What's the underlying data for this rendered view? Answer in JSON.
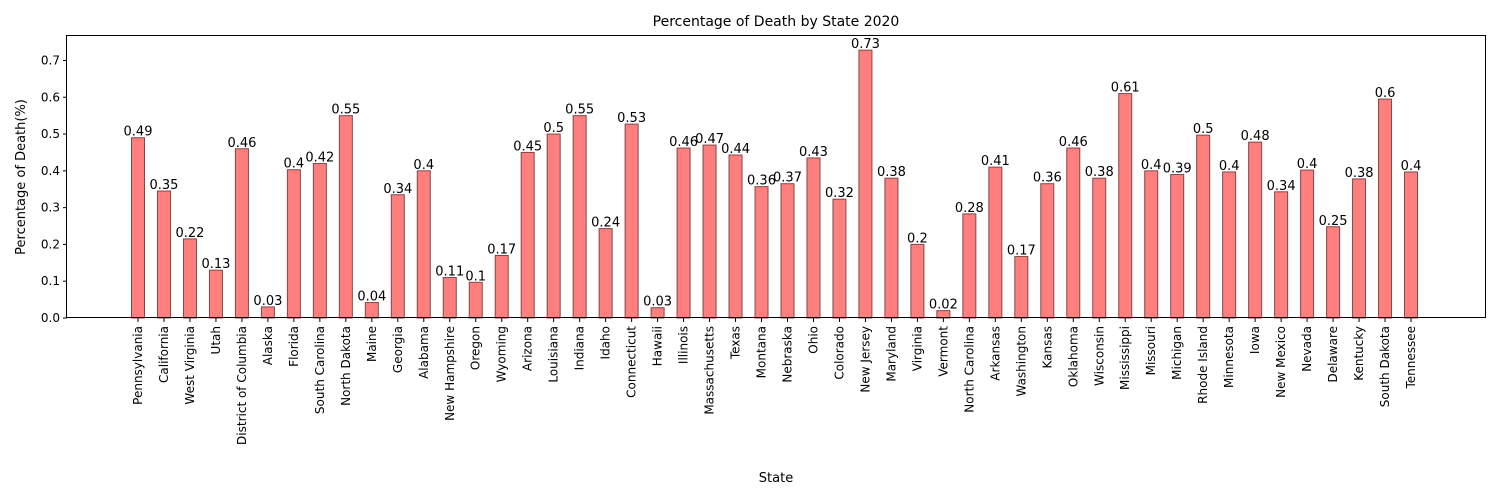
{
  "chart_data": {
    "type": "bar",
    "title": "Percentage of Death by State 2020",
    "xlabel": "State",
    "ylabel": "Percentage of Death(%)",
    "ylim": [
      0,
      0.7665
    ],
    "yticks": [
      "0.0",
      "0.1",
      "0.2",
      "0.3",
      "0.4",
      "0.5",
      "0.6",
      "0.7"
    ],
    "grid": false,
    "legend": "none",
    "bar_color": "#ff7f7f",
    "bar_edge_color": "#7a4a4a",
    "categories": [
      "Pennsylvania",
      "California",
      "West Virginia",
      "Utah",
      "District of Columbia",
      "Alaska",
      "Florida",
      "South Carolina",
      "North Dakota",
      "Maine",
      "Georgia",
      "Alabama",
      "New Hampshire",
      "Oregon",
      "Wyoming",
      "Arizona",
      "Louisiana",
      "Indiana",
      "Idaho",
      "Connecticut",
      "Hawaii",
      "Illinois",
      "Massachusetts",
      "Texas",
      "Montana",
      "Nebraska",
      "Ohio",
      "Colorado",
      "New Jersey",
      "Maryland",
      "Virginia",
      "Vermont",
      "North Carolina",
      "Arkansas",
      "Washington",
      "Kansas",
      "Oklahoma",
      "Wisconsin",
      "Mississippi",
      "Missouri",
      "Michigan",
      "Rhode Island",
      "Minnesota",
      "Iowa",
      "New Mexico",
      "Nevada",
      "Delaware",
      "Kentucky",
      "South Dakota",
      "Tennessee"
    ],
    "values": [
      0.49,
      0.345,
      0.215,
      0.13,
      0.46,
      0.03,
      0.403,
      0.42,
      0.55,
      0.042,
      0.335,
      0.4,
      0.11,
      0.097,
      0.17,
      0.45,
      0.5,
      0.55,
      0.243,
      0.527,
      0.028,
      0.462,
      0.47,
      0.443,
      0.357,
      0.365,
      0.435,
      0.323,
      0.728,
      0.38,
      0.2,
      0.02,
      0.283,
      0.41,
      0.167,
      0.365,
      0.462,
      0.38,
      0.61,
      0.4,
      0.39,
      0.497,
      0.397,
      0.478,
      0.343,
      0.402,
      0.248,
      0.378,
      0.595,
      0.397
    ],
    "labels": [
      "0.49",
      "0.35",
      "0.22",
      "0.13",
      "0.46",
      "0.03",
      "0.4",
      "0.42",
      "0.55",
      "0.04",
      "0.34",
      "0.4",
      "0.11",
      "0.1",
      "0.17",
      "0.45",
      "0.5",
      "0.55",
      "0.24",
      "0.53",
      "0.03",
      "0.46",
      "0.47",
      "0.44",
      "0.36",
      "0.37",
      "0.43",
      "0.32",
      "0.73",
      "0.38",
      "0.2",
      "0.02",
      "0.28",
      "0.41",
      "0.17",
      "0.36",
      "0.46",
      "0.38",
      "0.61",
      "0.4",
      "0.39",
      "0.5",
      "0.4",
      "0.48",
      "0.34",
      "0.4",
      "0.25",
      "0.38",
      "0.6",
      "0.4"
    ]
  }
}
